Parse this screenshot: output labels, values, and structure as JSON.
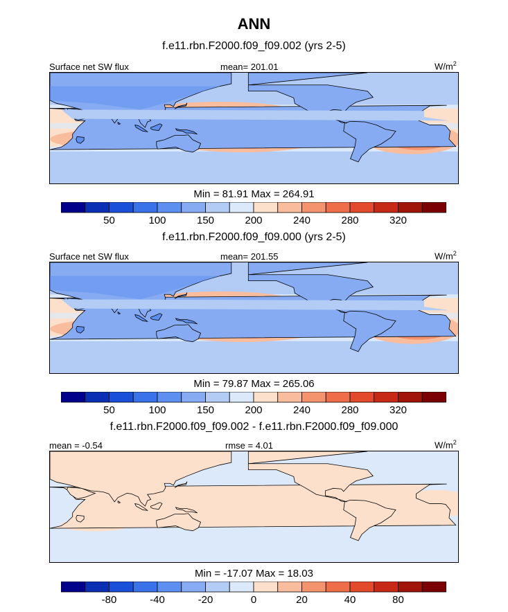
{
  "title": "ANN",
  "panels": [
    {
      "case": "f.e11.rbn.F2000.f09_f09.002 (yrs 2-5)",
      "left_label": "Surface net SW flux",
      "center_label": "mean= 201.01",
      "units_base": "W/m",
      "units_exp": "2",
      "minmax": "Min =  81.91 Max = 264.91",
      "colorbar": [
        "50",
        "100",
        "150",
        "200",
        "240",
        "280",
        "320"
      ]
    },
    {
      "case": "f.e11.rbn.F2000.f09_f09.000 (yrs 2-5)",
      "left_label": "Surface net SW flux",
      "center_label": "mean= 201.55",
      "units_base": "W/m",
      "units_exp": "2",
      "minmax": "Min =  79.87 Max = 265.06",
      "colorbar": [
        "50",
        "100",
        "150",
        "200",
        "240",
        "280",
        "320"
      ]
    },
    {
      "case": "f.e11.rbn.F2000.f09_f09.002 - f.e11.rbn.F2000.f09_f09.000",
      "left_label": "mean =  -0.54",
      "center_label": "rmse =   4.01",
      "units_base": "W/m",
      "units_exp": "2",
      "minmax": "Min = -17.07 Max =  18.03",
      "colorbar": [
        "-80",
        "-40",
        "-20",
        "0",
        "20",
        "40",
        "80"
      ]
    }
  ],
  "chart_data": {
    "type": "heatmap",
    "title": "ANN",
    "projection": "global cylindrical equidistant, centered on Indian Ocean",
    "variable": "Surface net SW flux",
    "units": "W/m2",
    "maps": [
      {
        "case": "f.e11.rbn.F2000.f09_f09.002 (yrs 2-5)",
        "mean": 201.01,
        "min": 81.91,
        "max": 264.91,
        "levels": [
          25,
          50,
          75,
          100,
          125,
          150,
          175,
          200,
          220,
          240,
          260,
          280,
          300,
          320,
          340
        ]
      },
      {
        "case": "f.e11.rbn.F2000.f09_f09.000 (yrs 2-5)",
        "mean": 201.55,
        "min": 79.87,
        "max": 265.06,
        "levels": [
          25,
          50,
          75,
          100,
          125,
          150,
          175,
          200,
          220,
          240,
          260,
          280,
          300,
          320,
          340
        ]
      },
      {
        "case": "f.e11.rbn.F2000.f09_f09.002 - f.e11.rbn.F2000.f09_f09.000",
        "mean": -0.54,
        "rmse": 4.01,
        "min": -17.07,
        "max": 18.03,
        "levels": [
          -100,
          -80,
          -60,
          -40,
          -30,
          -20,
          -10,
          0,
          10,
          20,
          30,
          40,
          60,
          80,
          100
        ]
      }
    ],
    "colormap": [
      "#00008a",
      "#0a2fb5",
      "#1a4fd9",
      "#3a72ea",
      "#5d8ff0",
      "#86abf2",
      "#b2ccf5",
      "#dce9fa",
      "#fde0cc",
      "#f9bc9c",
      "#f4946f",
      "#ee6e4a",
      "#e3492b",
      "#c62a17",
      "#a01409",
      "#7a0005"
    ]
  }
}
